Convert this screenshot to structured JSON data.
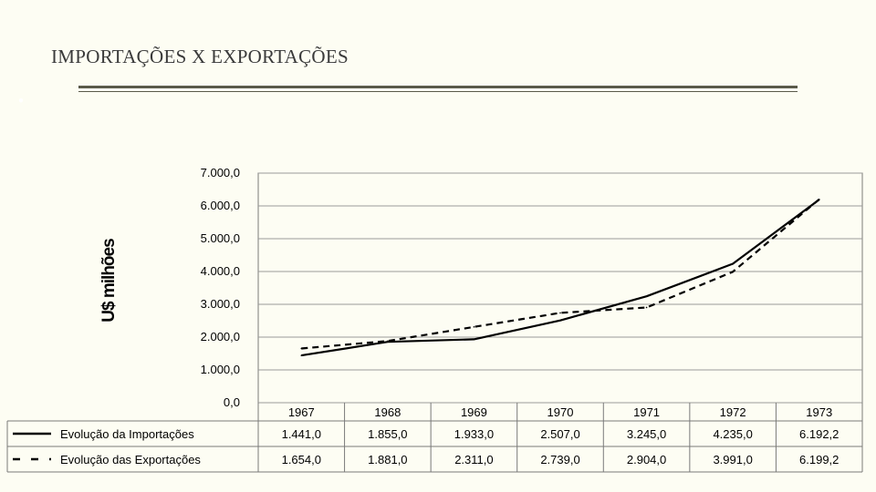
{
  "slide": {
    "title": "IMPORTAÇÕES X EXPORTAÇÕES"
  },
  "chart_data": {
    "type": "line",
    "title": "",
    "xlabel": "",
    "ylabel": "U$ milhões",
    "ylim": [
      0,
      7000
    ],
    "y_ticks": [
      "7.000,0",
      "6.000,0",
      "5.000,0",
      "4.000,0",
      "3.000,0",
      "2.000,0",
      "1.000,0",
      "0,0"
    ],
    "y_tick_values": [
      7000,
      6000,
      5000,
      4000,
      3000,
      2000,
      1000,
      0
    ],
    "grid": true,
    "legend": "data-table",
    "categories": [
      "1967",
      "1968",
      "1969",
      "1970",
      "1971",
      "1972",
      "1973"
    ],
    "series": [
      {
        "name": "Evolução da Importações",
        "style": "solid",
        "color": "#000000",
        "values": [
          1441.0,
          1855.0,
          1933.0,
          2507.0,
          3245.0,
          4235.0,
          6192.2
        ],
        "labels": [
          "1.441,0",
          "1.855,0",
          "1.933,0",
          "2.507,0",
          "3.245,0",
          "4.235,0",
          "6.192,2"
        ]
      },
      {
        "name": "Evolução das Exportações",
        "style": "dashed",
        "color": "#000000",
        "values": [
          1654.0,
          1881.0,
          2311.0,
          2739.0,
          2904.0,
          3991.0,
          6199.2
        ],
        "labels": [
          "1.654,0",
          "1.881,0",
          "2.311,0",
          "2.739,0",
          "2.904,0",
          "3.991,0",
          "6.199,2"
        ]
      }
    ]
  }
}
